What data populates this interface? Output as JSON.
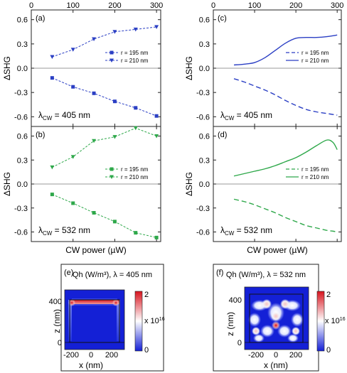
{
  "figure": {
    "x_axis_label": "CW power (µW)",
    "y_axis_label": "ΔSHG",
    "x_ticks": [
      "0",
      "100",
      "200",
      "300"
    ],
    "y_ticks": [
      "0.6",
      "0.3",
      "0.0",
      "-0.3",
      "-0.6"
    ]
  },
  "colors": {
    "blue_405": "#2b3fc4",
    "green_532": "#2ea84a",
    "zero_line": "#9a9a9a",
    "frame": "#222222"
  },
  "panels": {
    "a": {
      "label": "(a)",
      "note_main": "λ",
      "note_sub": "CW",
      "note_rest": " = 405 nm",
      "legend": [
        "r = 195 nm",
        "r = 210 nm"
      ]
    },
    "b": {
      "label": "(b)",
      "note_main": "λ",
      "note_sub": "CW",
      "note_rest": " = 532 nm",
      "legend": [
        "r = 195 nm",
        "r = 210 nm"
      ]
    },
    "c": {
      "label": "(c)",
      "note_main": "λ",
      "note_sub": "CW",
      "note_rest": " = 405 nm",
      "legend": [
        "r = 195 nm",
        "r = 210 nm"
      ]
    },
    "d": {
      "label": "(d)",
      "note_main": "λ",
      "note_sub": "CW",
      "note_rest": " = 532 nm",
      "legend": [
        "r = 195 nm",
        "r = 210 nm"
      ]
    },
    "e": {
      "label": "(e)",
      "title": "Qh (W/m³), λ = 405 nm"
    },
    "f": {
      "label": "(f)",
      "title": "Qh (W/m³), λ = 532 nm"
    }
  },
  "heatmaps": {
    "x_label": "x (nm)",
    "y_label": "z (nm)",
    "x_ticks": [
      "-200",
      "0",
      "200"
    ],
    "y_ticks": [
      "400",
      "0"
    ],
    "colorbar_ticks": [
      "2",
      "0"
    ],
    "colorbar_unit": "x 10",
    "colorbar_exp": "16"
  },
  "chart_data": [
    {
      "panel": "a",
      "type": "scatter",
      "x": [
        50,
        100,
        150,
        200,
        250,
        300
      ],
      "series": [
        {
          "name": "r = 195 nm",
          "marker": "square",
          "values": [
            -0.12,
            -0.23,
            -0.31,
            -0.41,
            -0.49,
            -0.59
          ]
        },
        {
          "name": "r = 210 nm",
          "marker": "triangle",
          "values": [
            0.14,
            0.23,
            0.36,
            0.45,
            0.48,
            0.51
          ]
        }
      ],
      "xlim": [
        0,
        310
      ],
      "ylim": [
        -0.72,
        0.72
      ],
      "ylabel": "ΔSHG"
    },
    {
      "panel": "b",
      "type": "scatter",
      "x": [
        50,
        100,
        150,
        200,
        250,
        300
      ],
      "series": [
        {
          "name": "r = 195 nm",
          "marker": "square",
          "values": [
            -0.13,
            -0.24,
            -0.36,
            -0.47,
            -0.61,
            -0.67
          ]
        },
        {
          "name": "r = 210 nm",
          "marker": "triangle",
          "values": [
            0.21,
            0.34,
            0.54,
            0.59,
            0.7,
            0.6
          ]
        }
      ],
      "xlim": [
        0,
        310
      ],
      "ylim": [
        -0.72,
        0.72
      ],
      "xlabel": "CW power (µW)",
      "ylabel": "ΔSHG"
    },
    {
      "panel": "c",
      "type": "line",
      "x": [
        50,
        75,
        100,
        125,
        150,
        175,
        200,
        225,
        250,
        275,
        300
      ],
      "series": [
        {
          "name": "r = 195 nm",
          "style": "dashed",
          "values": [
            -0.13,
            -0.17,
            -0.22,
            -0.27,
            -0.33,
            -0.4,
            -0.46,
            -0.51,
            -0.54,
            -0.56,
            -0.58
          ]
        },
        {
          "name": "r = 210 nm",
          "style": "solid",
          "values": [
            0.04,
            0.05,
            0.07,
            0.13,
            0.22,
            0.31,
            0.37,
            0.38,
            0.38,
            0.39,
            0.41
          ]
        }
      ],
      "xlim": [
        0,
        310
      ],
      "ylim": [
        -0.72,
        0.72
      ],
      "ylabel": "ΔSHG"
    },
    {
      "panel": "d",
      "type": "line",
      "x": [
        50,
        75,
        100,
        125,
        150,
        175,
        200,
        225,
        250,
        275,
        290,
        300
      ],
      "series": [
        {
          "name": "r = 195 nm",
          "style": "dashed",
          "values": [
            -0.19,
            -0.22,
            -0.26,
            -0.31,
            -0.36,
            -0.42,
            -0.47,
            -0.52,
            -0.55,
            -0.58,
            -0.59,
            -0.6
          ]
        },
        {
          "name": "r = 210 nm",
          "style": "solid",
          "values": [
            0.1,
            0.13,
            0.16,
            0.19,
            0.23,
            0.28,
            0.33,
            0.4,
            0.48,
            0.55,
            0.52,
            0.43
          ]
        }
      ],
      "xlim": [
        0,
        310
      ],
      "ylim": [
        -0.72,
        0.72
      ],
      "xlabel": "CW power (µW)",
      "ylabel": "ΔSHG"
    },
    {
      "panel": "e",
      "type": "heatmap",
      "title": "Qh (W/m³), λ = 405 nm",
      "xlim": [
        -250,
        250
      ],
      "ylim": [
        -50,
        450
      ],
      "colorbar_range": [
        0,
        2
      ],
      "colorbar_scale": "x 10^16",
      "xlabel": "x (nm)",
      "ylabel": "z (nm)"
    },
    {
      "panel": "f",
      "type": "heatmap",
      "title": "Qh (W/m³), λ = 532 nm",
      "xlim": [
        -250,
        250
      ],
      "ylim": [
        -50,
        450
      ],
      "colorbar_range": [
        0,
        2
      ],
      "colorbar_scale": "x 10^16",
      "xlabel": "x (nm)",
      "ylabel": "z (nm)"
    }
  ]
}
